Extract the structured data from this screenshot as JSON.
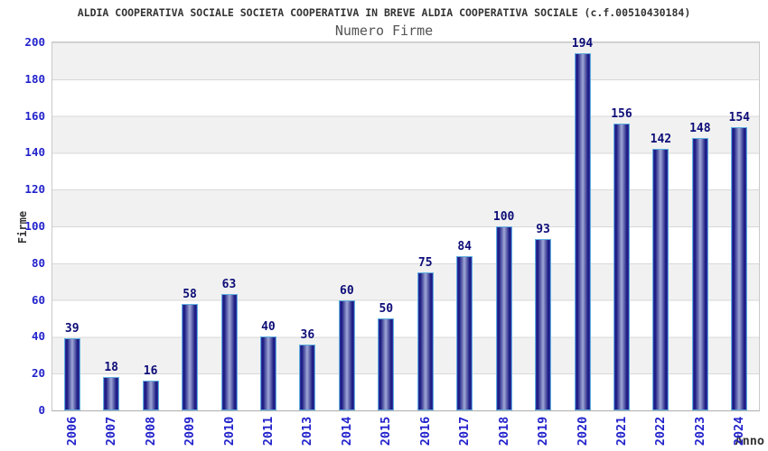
{
  "chart_data": {
    "type": "bar",
    "title": "ALDIA COOPERATIVA SOCIALE SOCIETA COOPERATIVA IN BREVE ALDIA COOPERATIVA SOCIALE (c.f.00510430184)",
    "subtitle": "Numero Firme",
    "xlabel": "Anno",
    "ylabel": "Firme",
    "categories": [
      "2006",
      "2007",
      "2008",
      "2009",
      "2010",
      "2011",
      "2013",
      "2014",
      "2015",
      "2016",
      "2017",
      "2018",
      "2019",
      "2020",
      "2021",
      "2022",
      "2023",
      "2024"
    ],
    "values": [
      39,
      18,
      16,
      58,
      63,
      40,
      36,
      60,
      50,
      75,
      84,
      100,
      93,
      194,
      156,
      142,
      148,
      154
    ],
    "ylim": [
      0,
      200
    ],
    "y_ticks": [
      0,
      20,
      40,
      60,
      80,
      100,
      120,
      140,
      160,
      180,
      200
    ],
    "grid": "horizontal-bands",
    "legend": "none",
    "colors": {
      "bar_edge": "#15157d",
      "bar_center": "#9fa7d6",
      "bar_outline": "#5fafe0",
      "value_label": "#0d0d78",
      "axis_tick_label": "#2323cc",
      "title": "#333333",
      "subtitle": "#545454",
      "band": "#f1f1f1",
      "gridline": "#d8d8d8"
    }
  }
}
